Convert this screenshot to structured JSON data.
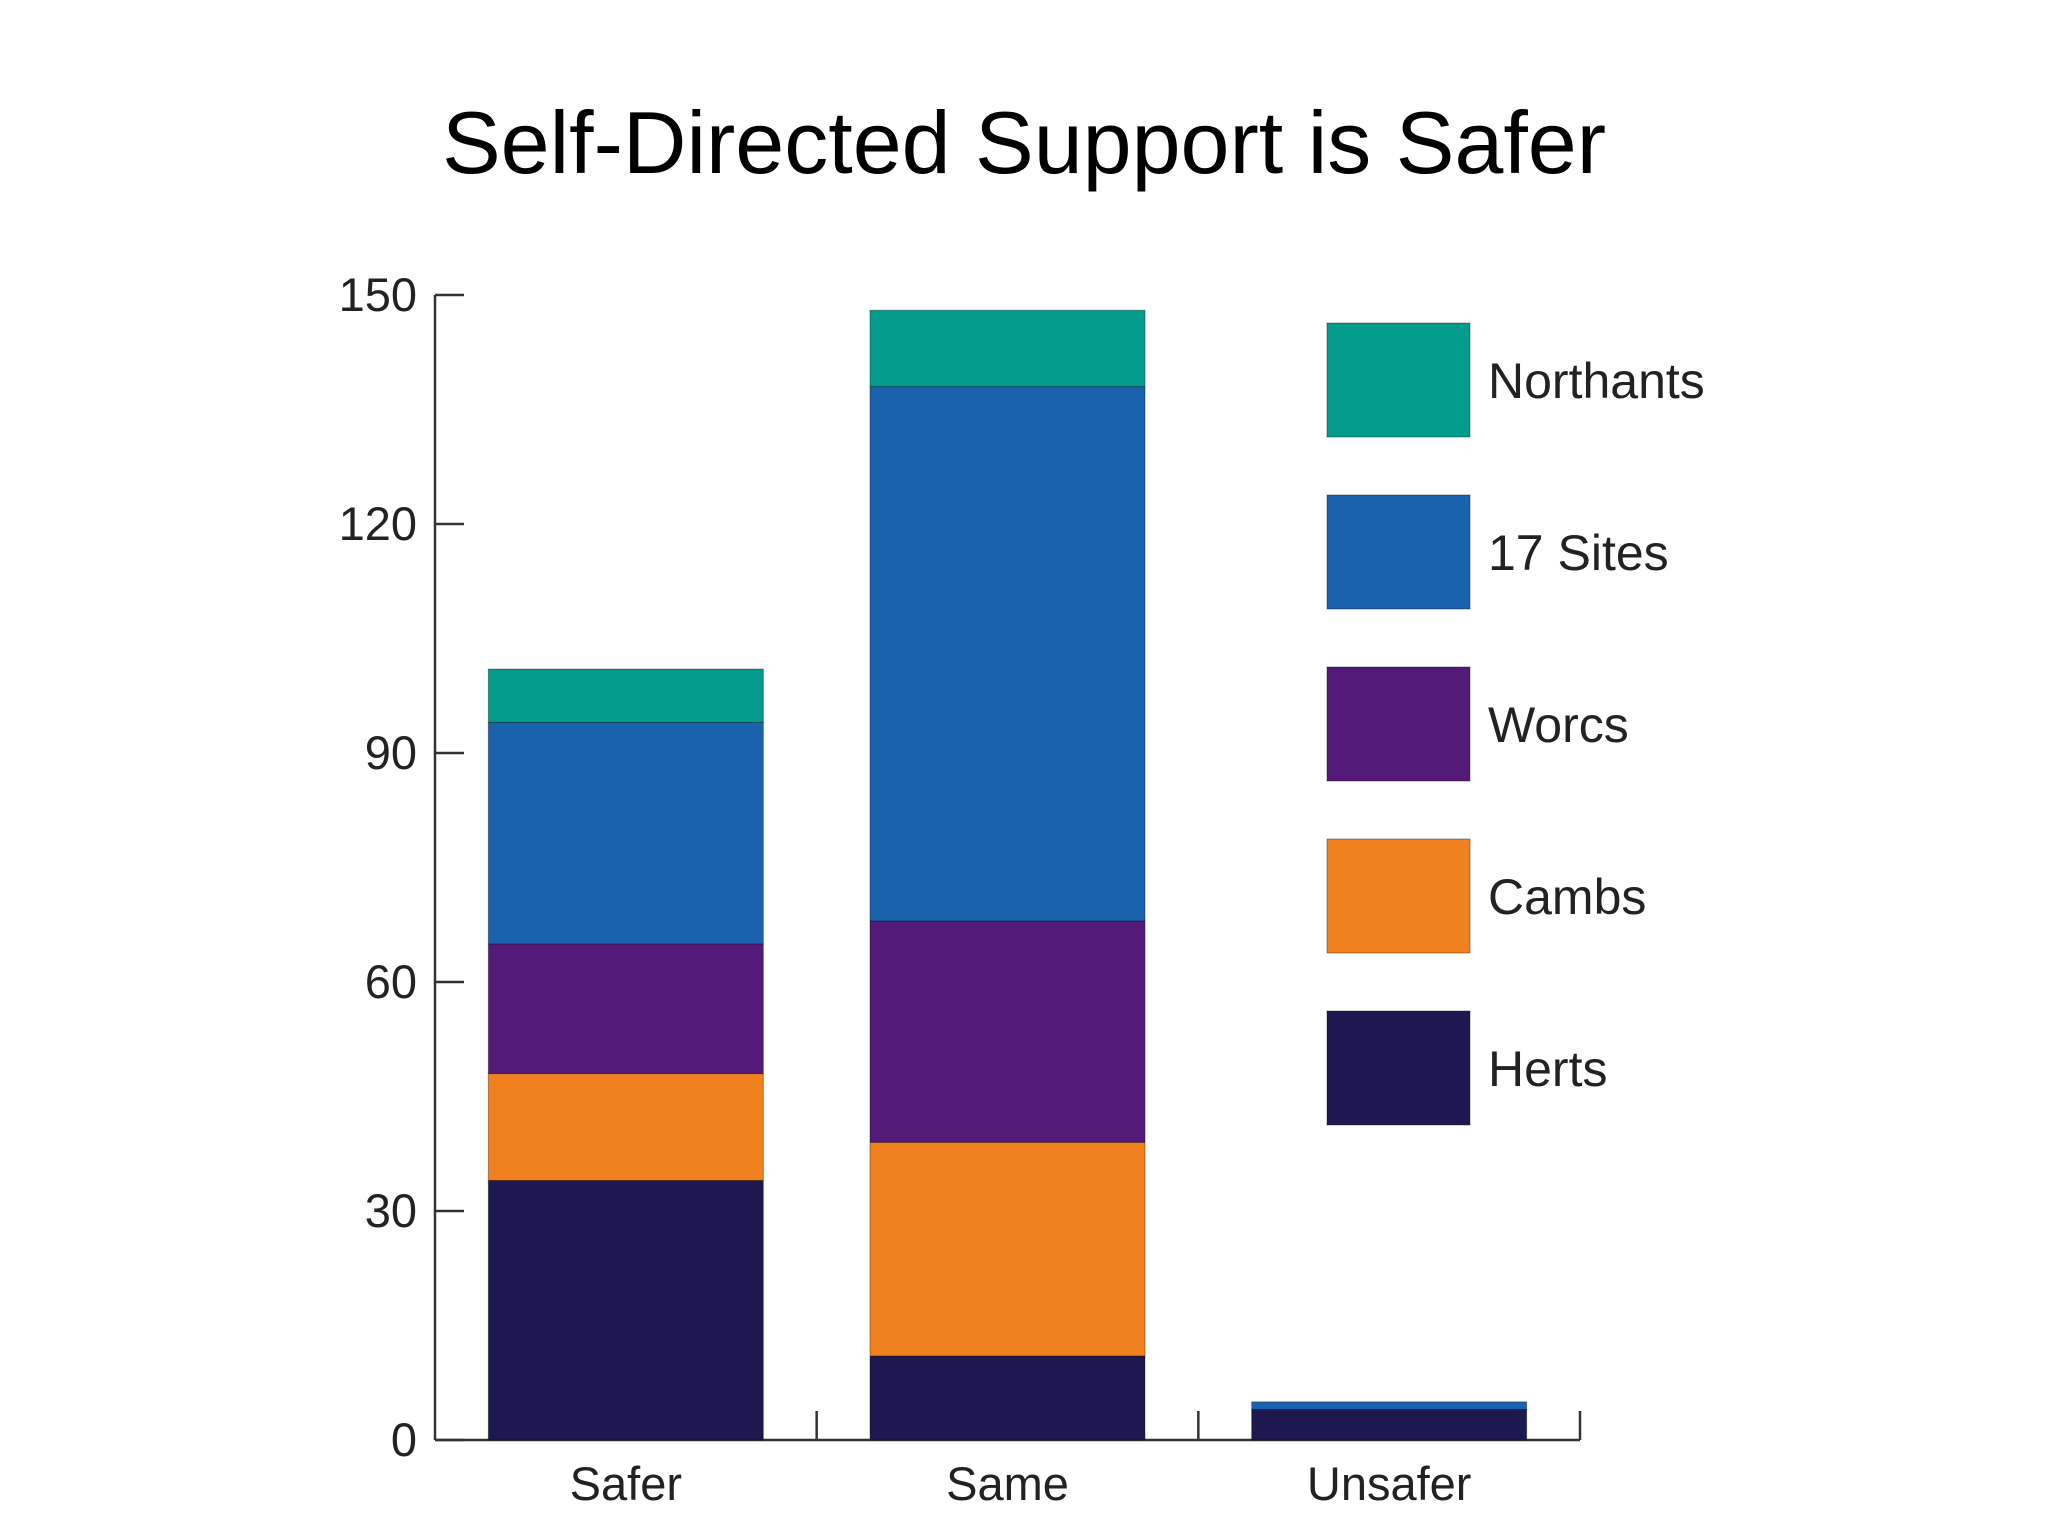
{
  "chart_data": {
    "type": "bar",
    "stacked": true,
    "title": "Self-Directed Support is Safer",
    "xlabel": "",
    "ylabel": "",
    "ylim": [
      0,
      150
    ],
    "yticks": [
      0,
      30,
      60,
      90,
      120,
      150
    ],
    "categories": [
      "Safer",
      "Same",
      "Unsafer"
    ],
    "series": [
      {
        "name": "Herts",
        "color": "#1e1850",
        "values": [
          34,
          11,
          4
        ]
      },
      {
        "name": "Cambs",
        "color": "#f0811e",
        "values": [
          14,
          28,
          0
        ]
      },
      {
        "name": "Worcs",
        "color": "#541a7a",
        "values": [
          17,
          29,
          0
        ]
      },
      {
        "name": "17 Sites",
        "color": "#1a62ad",
        "values": [
          29,
          70,
          1
        ]
      },
      {
        "name": "Northants",
        "color": "#039b8c",
        "values": [
          7,
          10,
          0
        ]
      }
    ],
    "legend": {
      "position": "top-right",
      "order": [
        "Northants",
        "17 Sites",
        "Worcs",
        "Cambs",
        "Herts"
      ]
    },
    "grid": false
  }
}
